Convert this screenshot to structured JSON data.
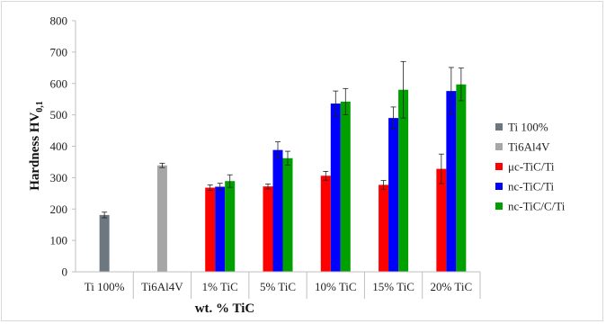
{
  "chart_data": {
    "type": "bar",
    "xlabel": "wt. % TiC",
    "ylabel": {
      "main": "Hardness HV",
      "subscript": "0,1"
    },
    "ylim": [
      0,
      800
    ],
    "yticks": [
      0,
      100,
      200,
      300,
      400,
      500,
      600,
      700,
      800
    ],
    "grid": false,
    "legend_position": "right",
    "categories": [
      "Ti 100%",
      "Ti6Al4V",
      "1% TiC",
      "5% TiC",
      "10% TiC",
      "15% TiC",
      "20% TiC"
    ],
    "series": [
      {
        "name": "Ti 100%",
        "color": "#6d7780",
        "values": [
          181,
          null,
          null,
          null,
          null,
          null,
          null
        ],
        "errors": [
          9,
          null,
          null,
          null,
          null,
          null,
          null
        ]
      },
      {
        "name": "Ti6Al4V",
        "color": "#a6a6a6",
        "values": [
          null,
          339,
          null,
          null,
          null,
          null,
          null
        ],
        "errors": [
          null,
          7,
          null,
          null,
          null,
          null,
          null
        ]
      },
      {
        "name": "μc-TiC/Ti",
        "color": "#ff0000",
        "values": [
          null,
          null,
          268,
          272,
          306,
          277,
          328
        ],
        "errors": [
          null,
          null,
          9,
          8,
          14,
          14,
          47
        ]
      },
      {
        "name": "nc-TiC/Ti",
        "color": "#0000ff",
        "values": [
          null,
          null,
          271,
          388,
          536,
          490,
          576
        ],
        "errors": [
          null,
          null,
          11,
          26,
          40,
          35,
          75
        ]
      },
      {
        "name": "nc-TiC/C/Ti",
        "color": "#00a000",
        "values": [
          null,
          null,
          289,
          362,
          542,
          580,
          597
        ],
        "errors": [
          null,
          null,
          20,
          22,
          42,
          90,
          52
        ]
      }
    ]
  }
}
